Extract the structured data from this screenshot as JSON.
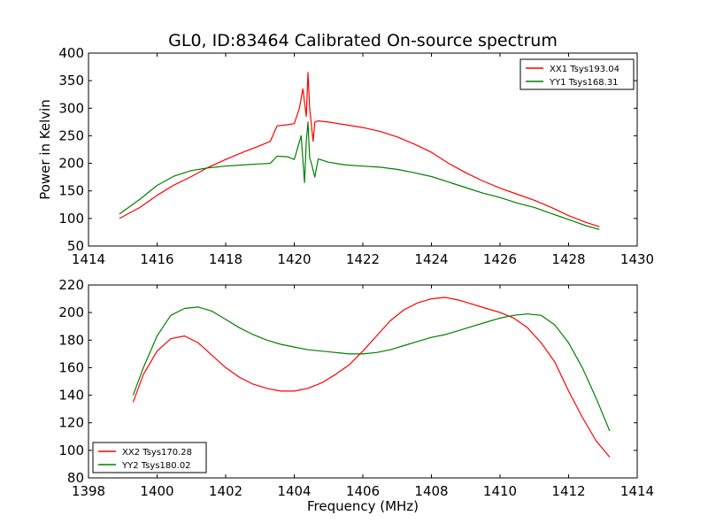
{
  "figure": {
    "title": "GL0, ID:83464 Calibrated On-source spectrum",
    "xlabel": "Frequency (MHz)"
  },
  "chart_data": [
    {
      "type": "line",
      "title": "GL0, ID:83464 Calibrated On-source spectrum",
      "xlabel": "",
      "ylabel": "Power in Kelvin",
      "xlim": [
        1414,
        1430
      ],
      "ylim": [
        50,
        400
      ],
      "xticks": [
        1414,
        1416,
        1418,
        1420,
        1422,
        1424,
        1426,
        1428,
        1430
      ],
      "yticks": [
        50,
        100,
        150,
        200,
        250,
        300,
        350,
        400
      ],
      "grid": false,
      "legend": "top-right",
      "series": [
        {
          "name": "XX1 Tsys193.04",
          "color": "#ff0000",
          "x": [
            1414.9,
            1415.5,
            1416.0,
            1416.5,
            1417.0,
            1417.5,
            1418.0,
            1418.5,
            1419.0,
            1419.3,
            1419.5,
            1419.8,
            1420.0,
            1420.15,
            1420.25,
            1420.35,
            1420.4,
            1420.45,
            1420.55,
            1420.6,
            1420.7,
            1421.0,
            1421.5,
            1422.0,
            1422.5,
            1423.0,
            1423.5,
            1424.0,
            1424.5,
            1425.0,
            1425.5,
            1426.0,
            1426.5,
            1427.0,
            1427.5,
            1428.0,
            1428.5,
            1428.9
          ],
          "values": [
            100,
            120,
            142,
            161,
            176,
            193,
            207,
            220,
            232,
            240,
            268,
            270,
            272,
            300,
            335,
            285,
            365,
            300,
            240,
            275,
            277,
            275,
            270,
            265,
            258,
            248,
            235,
            220,
            200,
            183,
            168,
            155,
            144,
            133,
            120,
            105,
            93,
            85
          ]
        },
        {
          "name": "YY1 Tsys168.31",
          "color": "#008000",
          "x": [
            1414.9,
            1415.5,
            1416.0,
            1416.5,
            1417.0,
            1417.5,
            1418.0,
            1418.5,
            1419.0,
            1419.3,
            1419.5,
            1419.8,
            1420.0,
            1420.2,
            1420.3,
            1420.35,
            1420.4,
            1420.45,
            1420.5,
            1420.6,
            1420.7,
            1421.0,
            1421.5,
            1422.0,
            1422.5,
            1423.0,
            1423.5,
            1424.0,
            1424.5,
            1425.0,
            1425.5,
            1426.0,
            1426.5,
            1427.0,
            1427.5,
            1428.0,
            1428.5,
            1428.9
          ],
          "values": [
            108,
            135,
            160,
            177,
            187,
            192,
            195,
            197,
            199,
            200,
            213,
            212,
            207,
            250,
            165,
            240,
            275,
            210,
            200,
            175,
            208,
            202,
            197,
            195,
            193,
            189,
            183,
            176,
            166,
            156,
            146,
            138,
            128,
            120,
            109,
            98,
            87,
            80
          ]
        }
      ]
    },
    {
      "type": "line",
      "title": "",
      "xlabel": "Frequency (MHz)",
      "ylabel": "",
      "xlim": [
        1398,
        1414
      ],
      "ylim": [
        80,
        220
      ],
      "xticks": [
        1398,
        1400,
        1402,
        1404,
        1406,
        1408,
        1410,
        1412,
        1414
      ],
      "yticks": [
        80,
        100,
        120,
        140,
        160,
        180,
        200,
        220
      ],
      "grid": false,
      "legend": "bottom-left",
      "series": [
        {
          "name": "XX2 Tsys170.28",
          "color": "#ff0000",
          "x": [
            1399.3,
            1399.6,
            1400.0,
            1400.4,
            1400.8,
            1401.2,
            1401.6,
            1402.0,
            1402.4,
            1402.8,
            1403.2,
            1403.6,
            1404.0,
            1404.4,
            1404.8,
            1405.2,
            1405.6,
            1406.0,
            1406.4,
            1406.8,
            1407.2,
            1407.6,
            1408.0,
            1408.4,
            1408.8,
            1409.2,
            1409.6,
            1410.0,
            1410.4,
            1410.8,
            1411.2,
            1411.6,
            1412.0,
            1412.4,
            1412.8,
            1413.2
          ],
          "values": [
            135,
            155,
            172,
            181,
            183,
            178,
            169,
            160,
            153,
            148,
            145,
            143,
            143,
            145,
            149,
            155,
            162,
            172,
            183,
            194,
            202,
            207,
            210,
            211,
            209,
            206,
            203,
            200,
            196,
            189,
            178,
            164,
            143,
            124,
            107,
            95
          ]
        },
        {
          "name": "YY2 Tsys180.02",
          "color": "#008000",
          "x": [
            1399.3,
            1399.6,
            1400.0,
            1400.4,
            1400.8,
            1401.2,
            1401.6,
            1402.0,
            1402.4,
            1402.8,
            1403.2,
            1403.6,
            1404.0,
            1404.4,
            1404.8,
            1405.2,
            1405.6,
            1406.0,
            1406.4,
            1406.8,
            1407.2,
            1407.6,
            1408.0,
            1408.4,
            1408.8,
            1409.2,
            1409.6,
            1410.0,
            1410.4,
            1410.8,
            1411.2,
            1411.6,
            1412.0,
            1412.4,
            1412.8,
            1413.2
          ],
          "values": [
            140,
            160,
            183,
            198,
            203,
            204,
            201,
            195,
            189,
            184,
            180,
            177,
            175,
            173,
            172,
            171,
            170,
            170,
            171,
            173,
            176,
            179,
            182,
            184,
            187,
            190,
            193,
            196,
            198,
            199,
            198,
            191,
            178,
            160,
            138,
            114
          ]
        }
      ]
    }
  ]
}
